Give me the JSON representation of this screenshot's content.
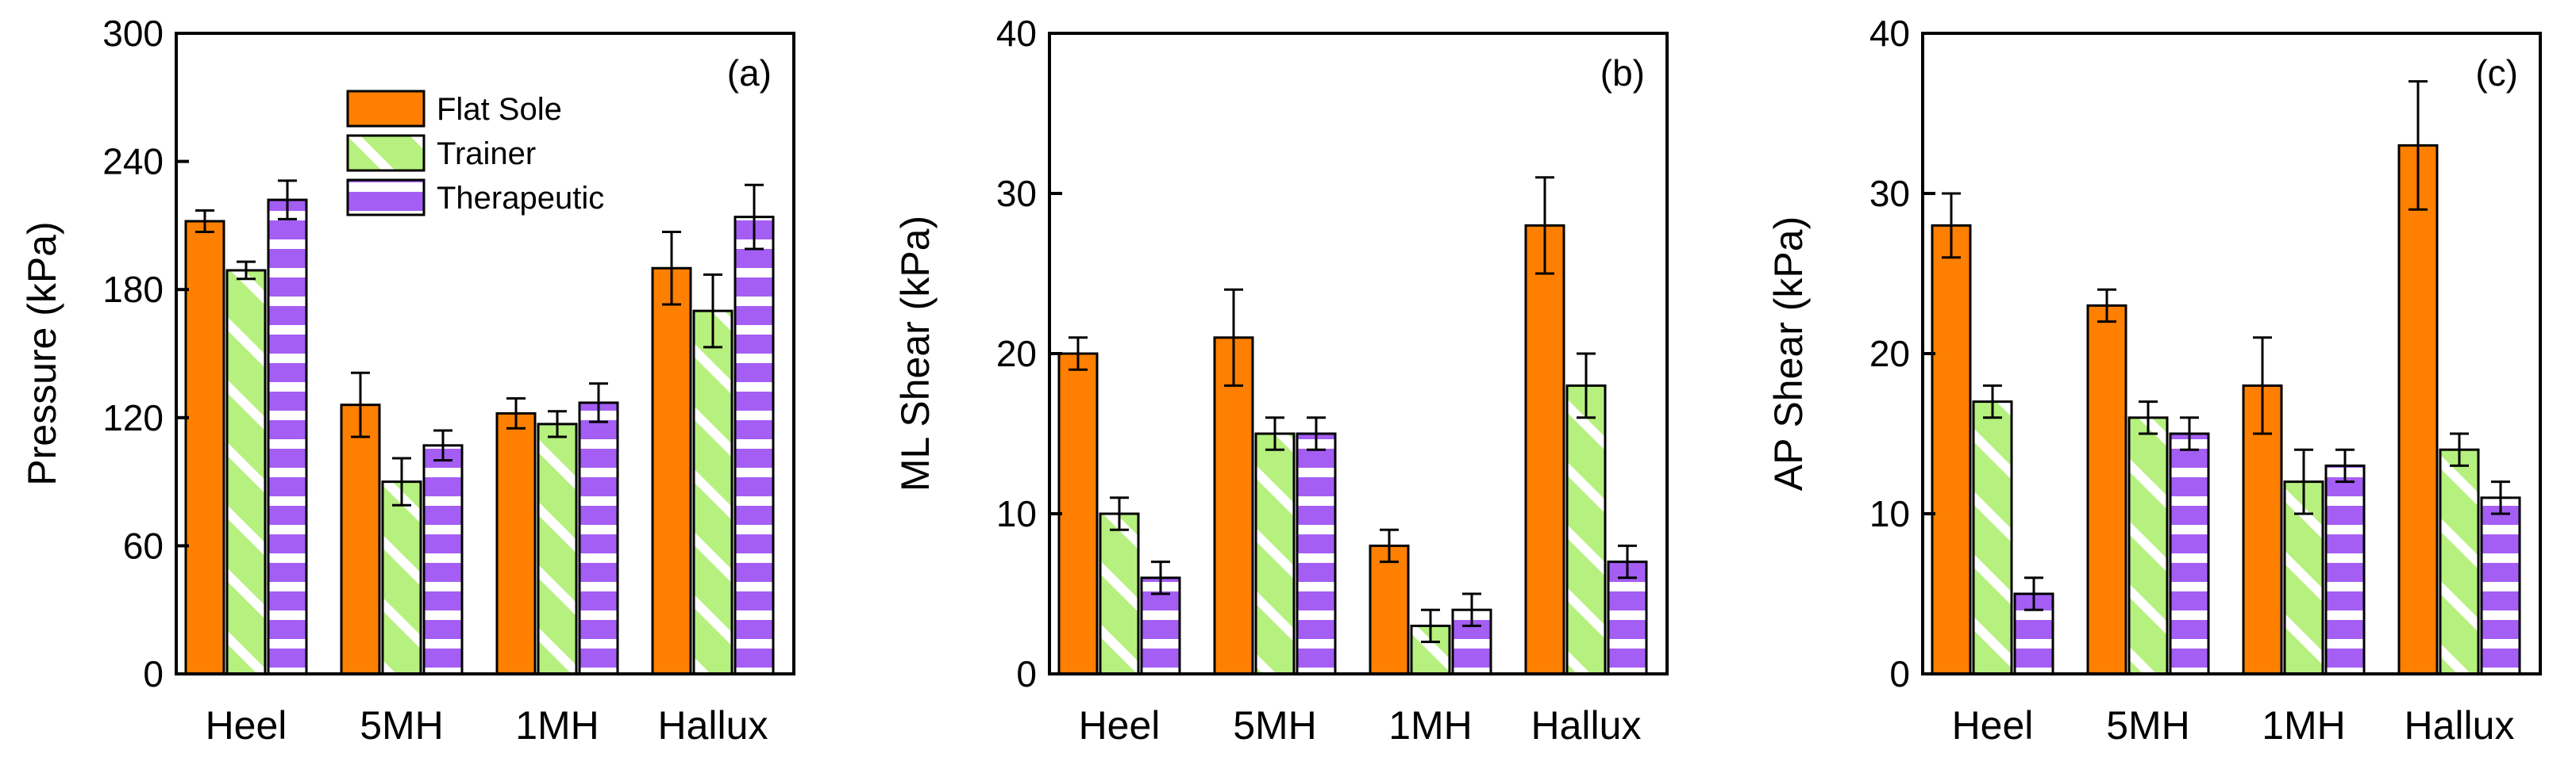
{
  "legend": [
    {
      "key": "flat",
      "label": "Flat Sole"
    },
    {
      "key": "trainer",
      "label": "Trainer"
    },
    {
      "key": "therapeutic",
      "label": "Therapeutic"
    }
  ],
  "colors": {
    "flat": "#ff7f00",
    "trainer": "#b6f07e",
    "therapeutic": "#a45ef4",
    "stripe": "#ffffff",
    "axis": "#000000"
  },
  "chart_data": [
    {
      "type": "bar",
      "panel_label": "(a)",
      "ylabel": "Pressure (kPa)",
      "xlabel": "",
      "ylim": [
        0,
        300
      ],
      "yticks": [
        0,
        60,
        120,
        180,
        240,
        300
      ],
      "categories": [
        "Heel",
        "5MH",
        "1MH",
        "Hallux"
      ],
      "series": [
        {
          "name": "Flat Sole",
          "key": "flat",
          "values": [
            212,
            126,
            122,
            190
          ],
          "errors": [
            5,
            15,
            7,
            17
          ]
        },
        {
          "name": "Trainer",
          "key": "trainer",
          "values": [
            189,
            90,
            117,
            170
          ],
          "errors": [
            4,
            11,
            6,
            17
          ]
        },
        {
          "name": "Therapeutic",
          "key": "therapeutic",
          "values": [
            222,
            107,
            127,
            214
          ],
          "errors": [
            9,
            7,
            9,
            15
          ]
        }
      ],
      "legend_position": "top-center"
    },
    {
      "type": "bar",
      "panel_label": "(b)",
      "ylabel": "ML Shear (kPa)",
      "xlabel": "",
      "ylim": [
        0,
        40
      ],
      "yticks": [
        0,
        10,
        20,
        30,
        40
      ],
      "categories": [
        "Heel",
        "5MH",
        "1MH",
        "Hallux"
      ],
      "series": [
        {
          "name": "Flat Sole",
          "key": "flat",
          "values": [
            20,
            21,
            8,
            28
          ],
          "errors": [
            1,
            3,
            1,
            3
          ]
        },
        {
          "name": "Trainer",
          "key": "trainer",
          "values": [
            10,
            15,
            3,
            18
          ],
          "errors": [
            1,
            1,
            1,
            2
          ]
        },
        {
          "name": "Therapeutic",
          "key": "therapeutic",
          "values": [
            6,
            15,
            4,
            7
          ],
          "errors": [
            1,
            1,
            1,
            1
          ]
        }
      ]
    },
    {
      "type": "bar",
      "panel_label": "(c)",
      "ylabel": "AP Shear (kPa)",
      "xlabel": "",
      "ylim": [
        0,
        40
      ],
      "yticks": [
        0,
        10,
        20,
        30,
        40
      ],
      "categories": [
        "Heel",
        "5MH",
        "1MH",
        "Hallux"
      ],
      "series": [
        {
          "name": "Flat Sole",
          "key": "flat",
          "values": [
            28,
            23,
            18,
            33
          ],
          "errors": [
            2,
            1,
            3,
            4
          ]
        },
        {
          "name": "Trainer",
          "key": "trainer",
          "values": [
            17,
            16,
            12,
            14
          ],
          "errors": [
            1,
            1,
            2,
            1
          ]
        },
        {
          "name": "Therapeutic",
          "key": "therapeutic",
          "values": [
            5,
            15,
            13,
            11
          ],
          "errors": [
            1,
            1,
            1,
            1
          ]
        }
      ]
    }
  ]
}
